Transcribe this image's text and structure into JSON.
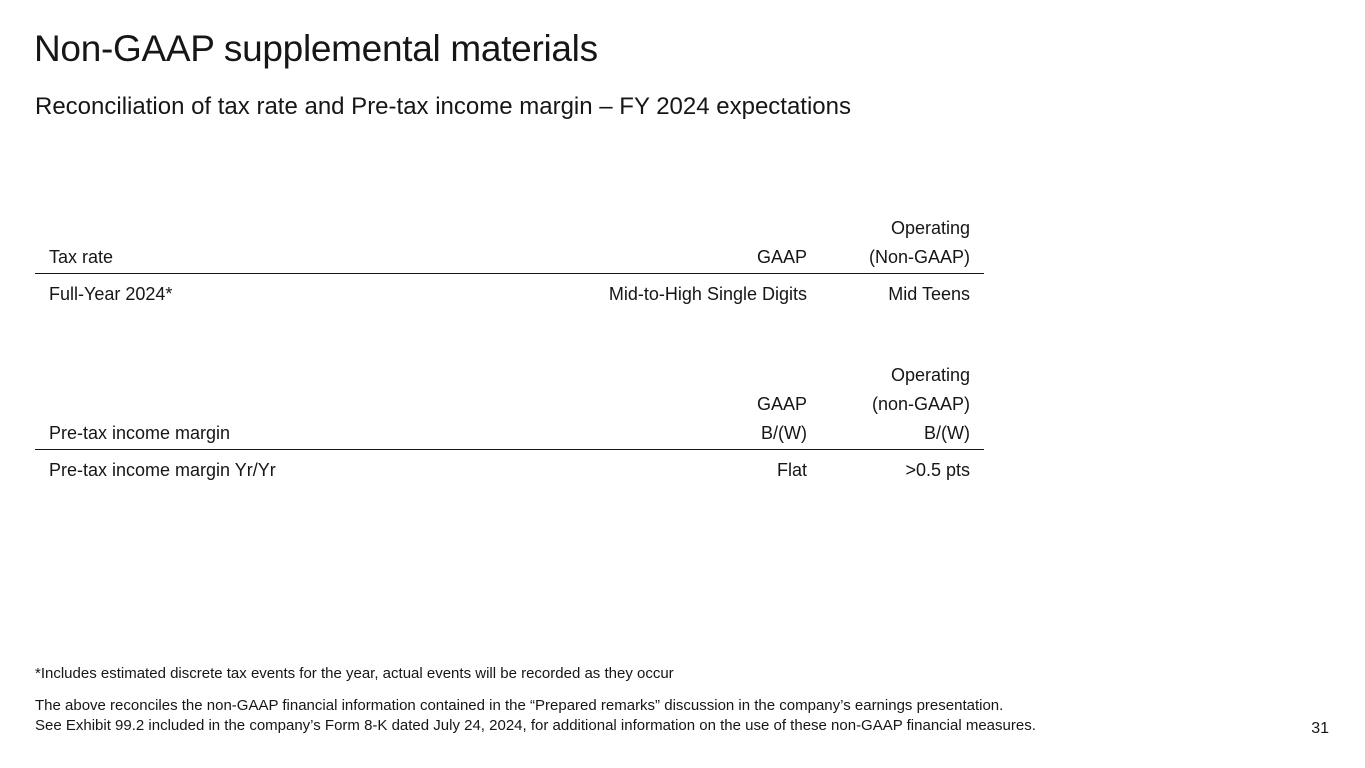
{
  "title": "Non-GAAP supplemental materials",
  "subtitle": "Reconciliation of tax rate and Pre-tax income margin – FY 2024 expectations",
  "tax_table": {
    "headers": [
      "Tax rate",
      "GAAP",
      "Operating",
      "(Non-GAAP)"
    ],
    "row": [
      "Full-Year 2024*",
      "Mid-to-High Single Digits",
      "Mid Teens"
    ]
  },
  "margin_table": {
    "headers": [
      "Pre-tax income margin",
      "GAAP",
      "B/(W)",
      "Operating",
      "(non-GAAP)",
      "B/(W)"
    ],
    "row": [
      "Pre-tax income margin Yr/Yr",
      "Flat",
      ">0.5 pts"
    ]
  },
  "footnote": "*Includes estimated discrete tax events for the year, actual events will be recorded as they occur",
  "disclaimer_1": "The above reconciles the non-GAAP financial information contained in the “Prepared remarks” discussion in the company’s earnings presentation.",
  "disclaimer_2": "See Exhibit 99.2 included in the company’s Form 8-K dated July 24, 2024, for additional information on the use of these non-GAAP financial measures.",
  "page_number": "31"
}
